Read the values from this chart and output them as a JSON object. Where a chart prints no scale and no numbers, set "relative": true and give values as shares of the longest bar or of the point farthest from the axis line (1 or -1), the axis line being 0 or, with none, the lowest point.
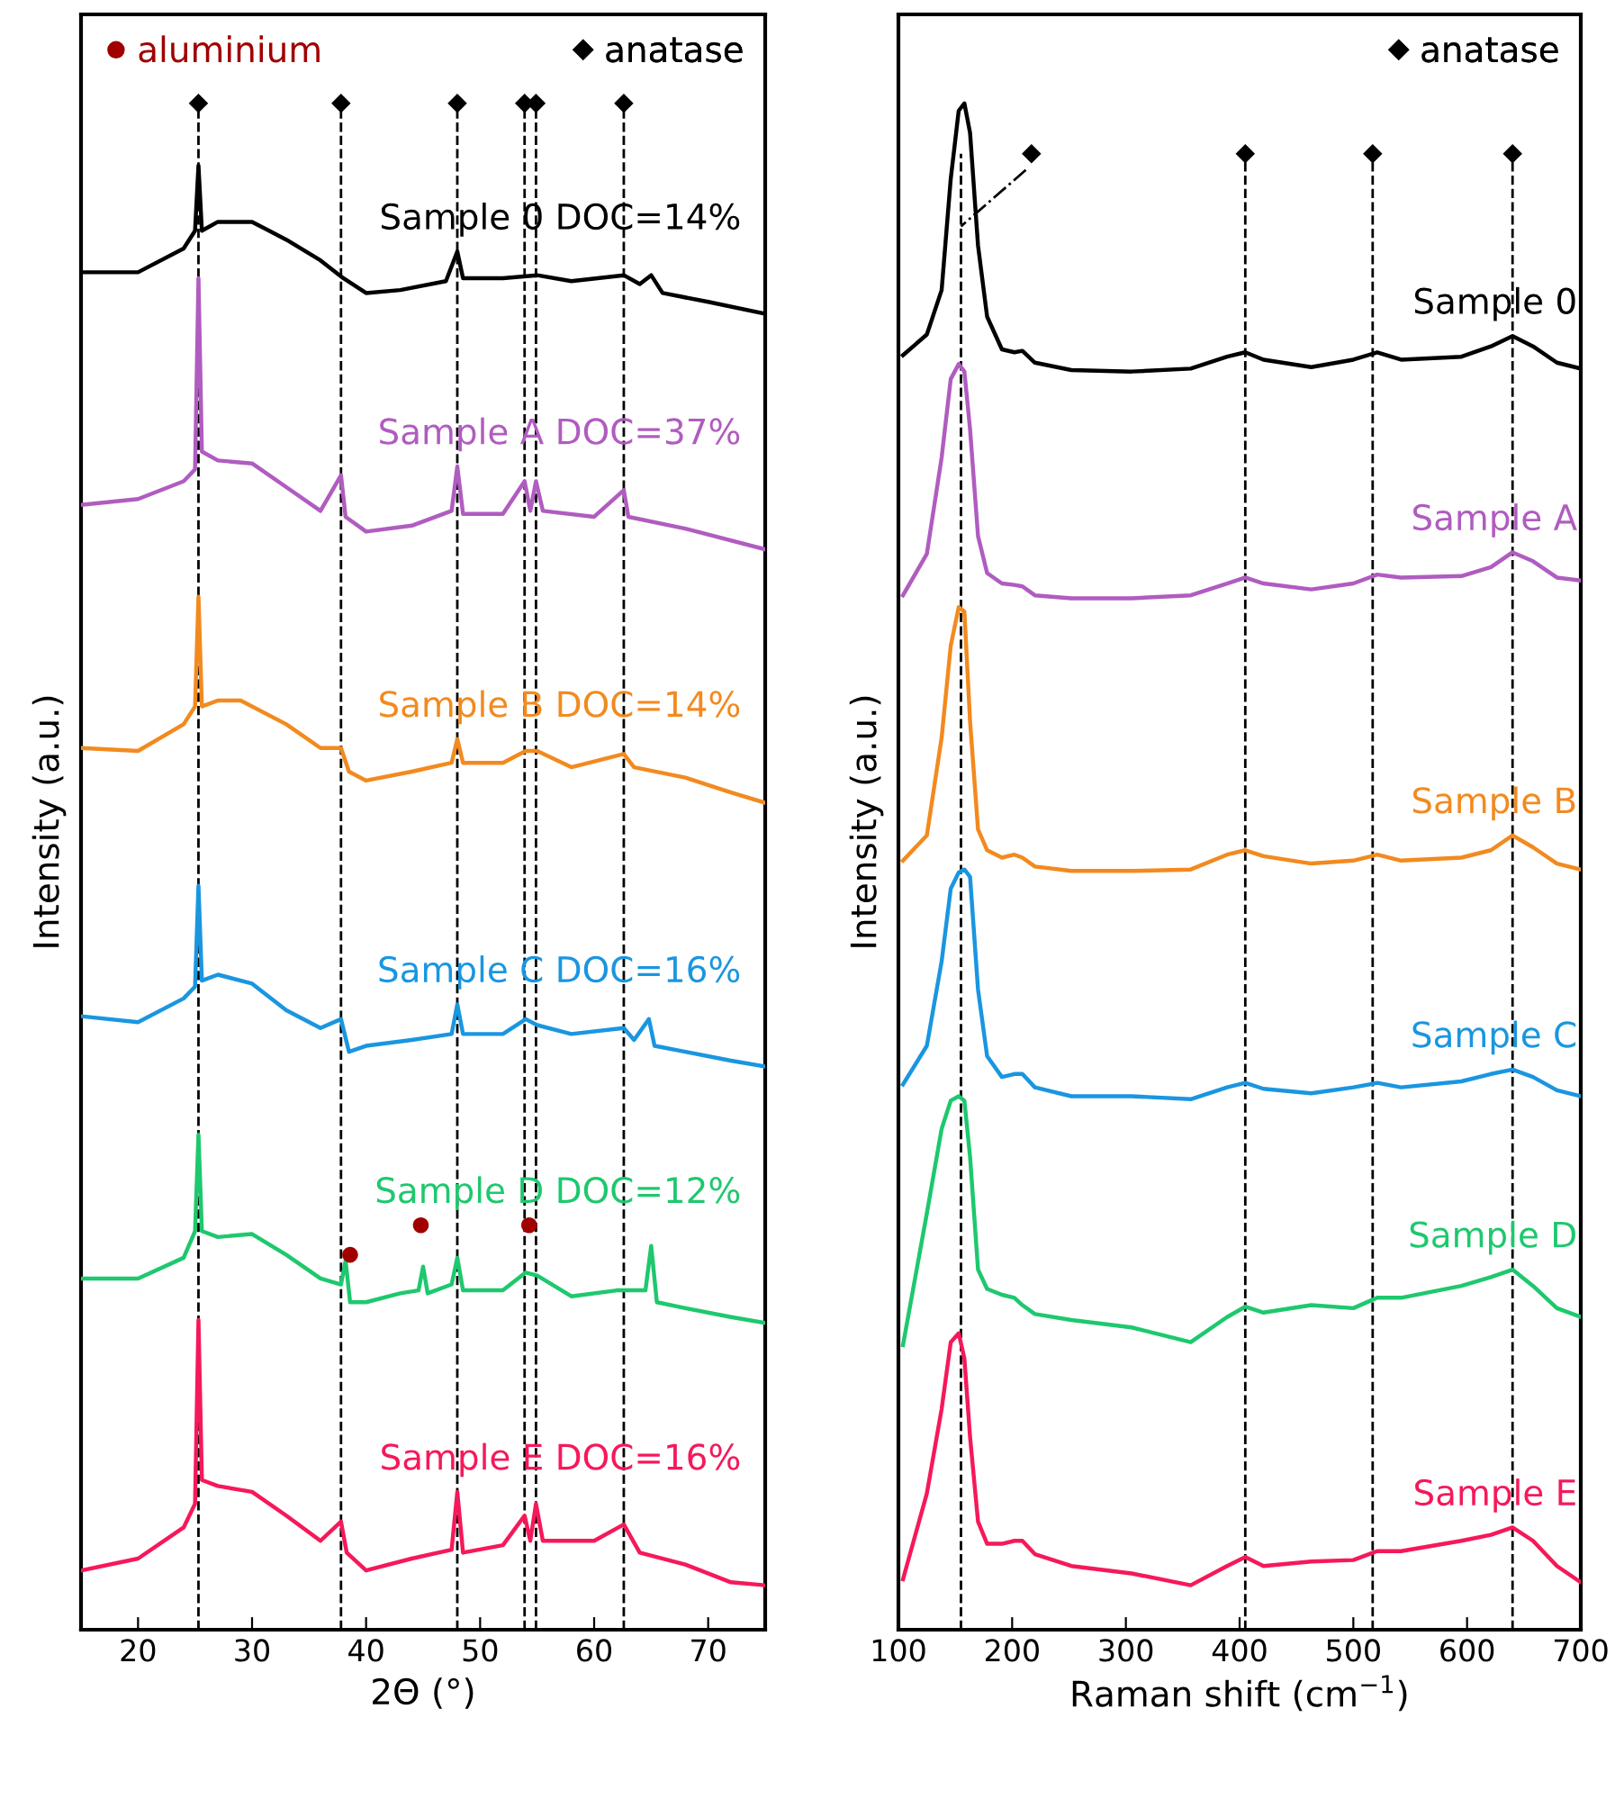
{
  "chart_data": [
    {
      "type": "line",
      "relative": true,
      "xlabel": "2Θ (°)",
      "ylabel": "Intensity (a.u.)",
      "xlim": [
        15,
        75
      ],
      "xticks": [
        20,
        30,
        40,
        50,
        60,
        70
      ],
      "legend": "top",
      "grid": false,
      "ref_lines": [
        {
          "axis": "x",
          "value": 25.3,
          "color": "#000000",
          "line_style": "dashed"
        },
        {
          "axis": "x",
          "value": 37.8,
          "color": "#000000",
          "line_style": "dashed"
        },
        {
          "axis": "x",
          "value": 48.0,
          "color": "#000000",
          "line_style": "dashed"
        },
        {
          "axis": "x",
          "value": 53.9,
          "color": "#000000",
          "line_style": "dashed"
        },
        {
          "axis": "x",
          "value": 54.9,
          "color": "#000000",
          "line_style": "dashed"
        },
        {
          "axis": "x",
          "value": 62.6,
          "color": "#000000",
          "line_style": "dashed"
        }
      ],
      "series": [
        {
          "name": "Sample 0 DOC=14%",
          "color": "#000000",
          "x": [
            15,
            20,
            24,
            25,
            25.3,
            25.6,
            27,
            30,
            33,
            36,
            38,
            40,
            43,
            47,
            48,
            48.5,
            52,
            55,
            58,
            62.6,
            64,
            65,
            66,
            70,
            75
          ],
          "values": [
            0.886,
            0.886,
            0.902,
            0.914,
            0.958,
            0.914,
            0.92,
            0.92,
            0.908,
            0.894,
            0.882,
            0.872,
            0.874,
            0.88,
            0.9,
            0.882,
            0.882,
            0.884,
            0.88,
            0.884,
            0.878,
            0.884,
            0.872,
            0.866,
            0.858
          ]
        },
        {
          "name": "Sample A DOC=37%",
          "color": "#b05cc0",
          "x": [
            15,
            20,
            24,
            25,
            25.3,
            25.6,
            27,
            30,
            33,
            36,
            37.8,
            38.2,
            40,
            44,
            47.5,
            48,
            48.5,
            52,
            53.9,
            54.4,
            54.9,
            55.5,
            60,
            62.6,
            63,
            68,
            75
          ],
          "values": [
            0.729,
            0.733,
            0.745,
            0.753,
            0.882,
            0.765,
            0.759,
            0.757,
            0.741,
            0.725,
            0.749,
            0.721,
            0.711,
            0.715,
            0.725,
            0.755,
            0.723,
            0.723,
            0.745,
            0.725,
            0.745,
            0.725,
            0.721,
            0.739,
            0.721,
            0.713,
            0.699
          ]
        },
        {
          "name": "Sample B DOC=14%",
          "color": "#f28a1f",
          "x": [
            15,
            20,
            24,
            25,
            25.3,
            25.6,
            27,
            29,
            33,
            36,
            37.8,
            38.5,
            40,
            44,
            47.5,
            48,
            48.5,
            52,
            54,
            55,
            58,
            62.6,
            63.5,
            68,
            72,
            75
          ],
          "values": [
            0.565,
            0.563,
            0.581,
            0.593,
            0.667,
            0.593,
            0.597,
            0.597,
            0.581,
            0.565,
            0.565,
            0.549,
            0.543,
            0.549,
            0.555,
            0.571,
            0.555,
            0.555,
            0.563,
            0.563,
            0.552,
            0.561,
            0.552,
            0.545,
            0.535,
            0.528
          ]
        },
        {
          "name": "Sample C DOC=16%",
          "color": "#1a96e0",
          "x": [
            15,
            20,
            24,
            25,
            25.3,
            25.6,
            27,
            30,
            33,
            36,
            37.8,
            38.5,
            40,
            44,
            47.5,
            48,
            48.5,
            52,
            54,
            55,
            58,
            62.6,
            63.5,
            64.8,
            65.3,
            68,
            72,
            75
          ],
          "values": [
            0.384,
            0.38,
            0.396,
            0.404,
            0.472,
            0.408,
            0.412,
            0.406,
            0.388,
            0.376,
            0.382,
            0.36,
            0.364,
            0.368,
            0.372,
            0.392,
            0.372,
            0.372,
            0.382,
            0.378,
            0.372,
            0.376,
            0.368,
            0.382,
            0.364,
            0.36,
            0.354,
            0.35
          ]
        },
        {
          "name": "Sample D DOC=12%",
          "color": "#1ec86e",
          "x": [
            15,
            20,
            24,
            25,
            25.3,
            25.6,
            27,
            30,
            33,
            36,
            37.8,
            38.2,
            38.6,
            40,
            43,
            44.6,
            45,
            45.4,
            47.5,
            48,
            48.5,
            52,
            54,
            55,
            58,
            62,
            64.5,
            65,
            65.5,
            68,
            72,
            75
          ],
          "values": [
            0.207,
            0.207,
            0.221,
            0.239,
            0.304,
            0.239,
            0.235,
            0.237,
            0.223,
            0.207,
            0.203,
            0.219,
            0.191,
            0.191,
            0.197,
            0.199,
            0.215,
            0.197,
            0.203,
            0.221,
            0.199,
            0.199,
            0.211,
            0.209,
            0.195,
            0.199,
            0.199,
            0.229,
            0.191,
            0.187,
            0.181,
            0.177
          ]
        },
        {
          "name": "Sample E DOC=16%",
          "color": "#f5195a",
          "x": [
            15,
            20,
            24,
            25,
            25.3,
            25.6,
            27,
            30,
            33,
            36,
            37.8,
            38.3,
            40,
            44,
            47.5,
            48,
            48.5,
            52,
            53.9,
            54.4,
            54.9,
            55.5,
            60,
            62.6,
            64,
            68,
            72,
            75
          ],
          "values": [
            0.01,
            0.018,
            0.039,
            0.055,
            0.179,
            0.071,
            0.067,
            0.063,
            0.047,
            0.03,
            0.043,
            0.022,
            0.01,
            0.018,
            0.024,
            0.063,
            0.022,
            0.027,
            0.047,
            0.03,
            0.055,
            0.03,
            0.03,
            0.041,
            0.022,
            0.014,
            0.002,
            0.0
          ]
        },
        {
          "name": "aluminium",
          "type": "scatter",
          "marker": "circle",
          "color": "#a00000",
          "x": [
            38.6,
            44.8,
            54.3
          ],
          "values": [
            0.223,
            0.243,
            0.243
          ]
        },
        {
          "name": "anatase",
          "type": "scatter",
          "marker": "diamond",
          "color": "#000000",
          "x": [
            25.3,
            37.8,
            48.0,
            53.9,
            54.9,
            62.6
          ],
          "values": [
            1.0,
            1.0,
            1.0,
            1.0,
            1.0,
            1.0
          ]
        }
      ]
    },
    {
      "type": "line",
      "relative": true,
      "xlabel": "Raman shift (cm$^{−1}$)",
      "ylabel": "Intensity (a.u.)",
      "xlim": [
        100,
        700
      ],
      "xticks": [
        100,
        200,
        300,
        400,
        500,
        600,
        700
      ],
      "legend": "top right",
      "grid": false,
      "x": [
        104,
        125,
        138,
        146,
        153,
        158,
        163,
        170,
        178,
        191,
        202,
        209,
        220,
        252,
        305,
        357,
        389,
        405,
        421,
        463,
        500,
        521,
        542,
        595,
        621,
        640,
        658,
        679,
        700
      ],
      "ref_lines": [
        {
          "axis": "x",
          "value": 155,
          "color": "#000000",
          "line_style": "dashed"
        },
        {
          "axis": "x",
          "value": 405,
          "color": "#000000",
          "line_style": "dashed"
        },
        {
          "axis": "x",
          "value": 517,
          "color": "#000000",
          "line_style": "dashed"
        },
        {
          "axis": "x",
          "value": 640,
          "color": "#000000",
          "line_style": "dashed"
        }
      ],
      "series": [
        {
          "name": "Sample 0",
          "color": "#000000",
          "values": [
            0.83,
            0.844,
            0.874,
            0.949,
            0.995,
            1.0,
            0.98,
            0.904,
            0.856,
            0.834,
            0.832,
            0.833,
            0.825,
            0.82,
            0.819,
            0.821,
            0.829,
            0.832,
            0.827,
            0.822,
            0.827,
            0.832,
            0.827,
            0.829,
            0.836,
            0.843,
            0.836,
            0.825,
            0.821
          ]
        },
        {
          "name": "Sample A",
          "color": "#b05cc0",
          "values": [
            0.668,
            0.696,
            0.761,
            0.814,
            0.824,
            0.819,
            0.78,
            0.708,
            0.683,
            0.676,
            0.675,
            0.674,
            0.668,
            0.666,
            0.666,
            0.668,
            0.676,
            0.68,
            0.676,
            0.672,
            0.676,
            0.682,
            0.68,
            0.681,
            0.687,
            0.697,
            0.691,
            0.68,
            0.678
          ]
        },
        {
          "name": "Sample B",
          "color": "#f28a1f",
          "values": [
            0.489,
            0.506,
            0.572,
            0.634,
            0.66,
            0.657,
            0.583,
            0.51,
            0.496,
            0.491,
            0.493,
            0.491,
            0.485,
            0.482,
            0.482,
            0.483,
            0.493,
            0.496,
            0.492,
            0.487,
            0.489,
            0.493,
            0.489,
            0.491,
            0.496,
            0.506,
            0.498,
            0.487,
            0.483
          ]
        },
        {
          "name": "Sample C",
          "color": "#1a96e0",
          "values": [
            0.338,
            0.364,
            0.421,
            0.47,
            0.481,
            0.483,
            0.478,
            0.402,
            0.357,
            0.343,
            0.345,
            0.345,
            0.336,
            0.33,
            0.33,
            0.328,
            0.336,
            0.339,
            0.335,
            0.332,
            0.336,
            0.339,
            0.336,
            0.34,
            0.345,
            0.348,
            0.343,
            0.334,
            0.33
          ]
        },
        {
          "name": "Sample D",
          "color": "#1ec86e",
          "values": [
            0.162,
            0.251,
            0.308,
            0.327,
            0.33,
            0.327,
            0.289,
            0.213,
            0.2,
            0.196,
            0.194,
            0.189,
            0.183,
            0.179,
            0.174,
            0.164,
            0.181,
            0.188,
            0.184,
            0.189,
            0.187,
            0.194,
            0.194,
            0.202,
            0.208,
            0.213,
            0.202,
            0.187,
            0.181
          ]
        },
        {
          "name": "Sample E",
          "color": "#f5195a",
          "values": [
            0.004,
            0.062,
            0.119,
            0.164,
            0.17,
            0.153,
            0.1,
            0.043,
            0.028,
            0.028,
            0.03,
            0.03,
            0.021,
            0.013,
            0.008,
            0.0,
            0.013,
            0.019,
            0.013,
            0.016,
            0.017,
            0.023,
            0.023,
            0.03,
            0.034,
            0.039,
            0.03,
            0.013,
            0.002
          ]
        },
        {
          "type": "line",
          "line_style": "dashdot",
          "color": "#000000",
          "x": [
            212,
            155
          ],
          "values": [
            0.955,
            0.917
          ]
        },
        {
          "name": "anatase",
          "type": "scatter",
          "marker": "diamond",
          "color": "#000000",
          "x": [
            217,
            405,
            517,
            640
          ],
          "values": [
            0.966,
            0.966,
            0.966,
            0.966
          ]
        }
      ]
    }
  ]
}
